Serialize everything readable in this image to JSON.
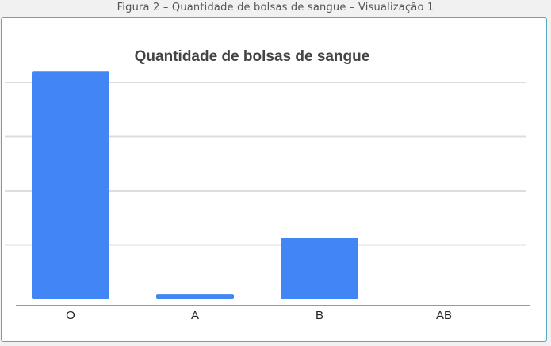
{
  "figure_caption": "Figura 2 – Quantidade de bolsas de sangue – Visualização 1",
  "chart_data": {
    "type": "bar",
    "title": "Quantidade de bolsas de sangue",
    "categories": [
      "O",
      "A",
      "B",
      "AB"
    ],
    "values": [
      42,
      1,
      11.3,
      0
    ],
    "xlabel": "",
    "ylabel": "",
    "ylim": [
      0,
      40
    ],
    "y_ticks": [
      0,
      10,
      20,
      30,
      40
    ],
    "y_tick_labels_visible": false,
    "grid": true,
    "bar_color": "#4285f4",
    "gridline_color": "#dddddd",
    "legend": "none"
  }
}
